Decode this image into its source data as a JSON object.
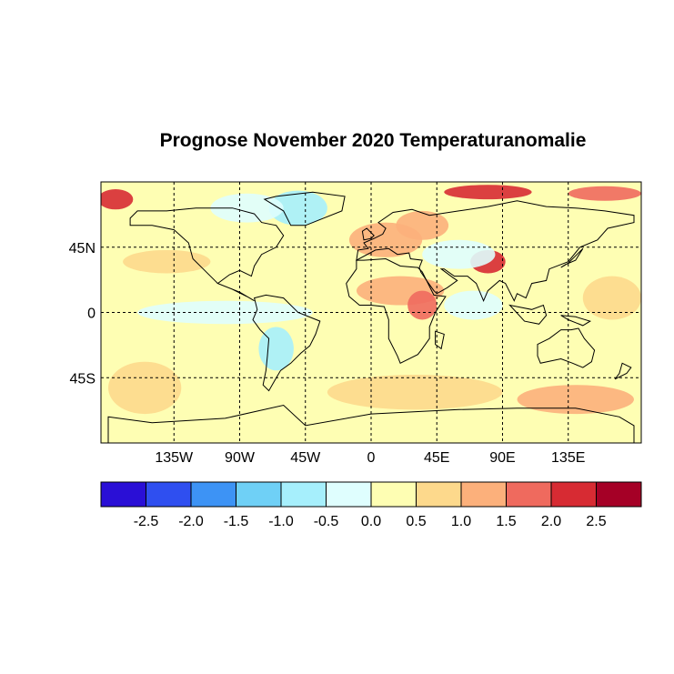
{
  "title": "Prognose November 2020 Temperaturanomalie",
  "map": {
    "lat_ticks": [
      {
        "lat": 45,
        "label": "45N"
      },
      {
        "lat": 0,
        "label": "0"
      },
      {
        "lat": -45,
        "label": "45S"
      }
    ],
    "lon_ticks": [
      {
        "lon": -135,
        "label": "135W"
      },
      {
        "lon": -90,
        "label": "90W"
      },
      {
        "lon": -45,
        "label": "45W"
      },
      {
        "lon": 0,
        "label": "0"
      },
      {
        "lon": 45,
        "label": "45E"
      },
      {
        "lon": 90,
        "label": "90E"
      },
      {
        "lon": 135,
        "label": "135E"
      }
    ],
    "grid": "dashed",
    "extent": {
      "lon": [
        -185,
        185
      ],
      "lat": [
        -90,
        90
      ]
    }
  },
  "colorbar": {
    "colors": [
      "#2a0fd6",
      "#2f4ff0",
      "#3d93f5",
      "#6fd0f6",
      "#a6effc",
      "#dffefe",
      "#fefeb3",
      "#fdd98c",
      "#fcb07b",
      "#ef6a5e",
      "#d72b33",
      "#a50026"
    ],
    "labels": [
      "-2.5",
      "-2.0",
      "-1.5",
      "-1.0",
      "-0.5",
      "0.0",
      "0.5",
      "1.0",
      "1.5",
      "2.0",
      "2.5"
    ]
  },
  "anomaly_patches": [
    {
      "lon": -155,
      "lat": -52,
      "rx": 25,
      "ry": 18,
      "level": 0.5
    },
    {
      "lon": 30,
      "lat": -55,
      "rx": 60,
      "ry": 12,
      "level": 0.5
    },
    {
      "lon": 140,
      "lat": -60,
      "rx": 40,
      "ry": 10,
      "level": 1.0
    },
    {
      "lon": -175,
      "lat": 78,
      "rx": 12,
      "ry": 7,
      "level": 2.0
    },
    {
      "lon": 160,
      "lat": 82,
      "rx": 25,
      "ry": 5,
      "level": 1.5
    },
    {
      "lon": 80,
      "lat": 83,
      "rx": 30,
      "ry": 5,
      "level": 2.0
    },
    {
      "lon": -50,
      "lat": 72,
      "rx": 20,
      "ry": 12,
      "level": -1.0
    },
    {
      "lon": -85,
      "lat": 72,
      "rx": 25,
      "ry": 10,
      "level": -0.5
    },
    {
      "lon": 10,
      "lat": 50,
      "rx": 25,
      "ry": 12,
      "level": 1.0
    },
    {
      "lon": 35,
      "lat": 60,
      "rx": 18,
      "ry": 10,
      "level": 1.0
    },
    {
      "lon": 80,
      "lat": 35,
      "rx": 12,
      "ry": 8,
      "level": 2.0
    },
    {
      "lon": 60,
      "lat": 40,
      "rx": 25,
      "ry": 10,
      "level": -0.5
    },
    {
      "lon": 20,
      "lat": 15,
      "rx": 30,
      "ry": 10,
      "level": 1.0
    },
    {
      "lon": 35,
      "lat": 5,
      "rx": 10,
      "ry": 10,
      "level": 1.5
    },
    {
      "lon": -100,
      "lat": 0,
      "rx": 60,
      "ry": 8,
      "level": -0.5
    },
    {
      "lon": -140,
      "lat": 35,
      "rx": 30,
      "ry": 8,
      "level": 0.5
    },
    {
      "lon": -65,
      "lat": -25,
      "rx": 12,
      "ry": 15,
      "level": -1.0
    },
    {
      "lon": 70,
      "lat": 5,
      "rx": 20,
      "ry": 10,
      "level": -0.5
    },
    {
      "lon": 165,
      "lat": 10,
      "rx": 20,
      "ry": 15,
      "level": 0.5
    }
  ]
}
